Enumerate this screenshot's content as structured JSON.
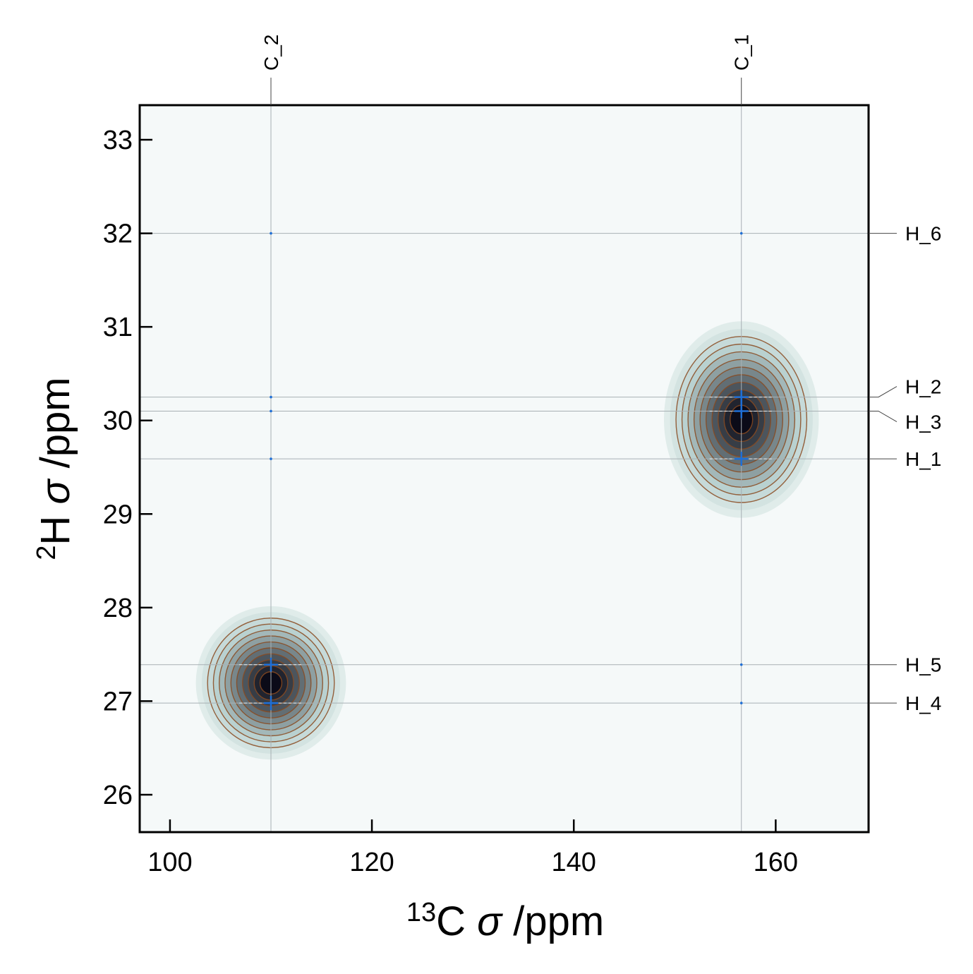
{
  "chart_data": {
    "type": "contour",
    "xlabel": {
      "sup": "13",
      "nuc": "C",
      "rest": " /ppm"
    },
    "ylabel": {
      "sup": "2",
      "nuc": "H",
      "rest": " /ppm"
    },
    "xlim": [
      97,
      169.2
    ],
    "ylim": [
      25.6,
      33.37
    ],
    "x_axis_inverted": false,
    "xticks": [
      100,
      120,
      140,
      160
    ],
    "yticks": [
      26,
      27,
      28,
      29,
      30,
      31,
      32,
      33
    ],
    "grid": false,
    "carbon_labels": [
      {
        "name": "C_2",
        "value": 110.0
      },
      {
        "name": "C_1",
        "value": 156.6
      }
    ],
    "hydrogen_labels": [
      {
        "name": "H_6",
        "value": 32.0
      },
      {
        "name": "H_2",
        "value": 30.25
      },
      {
        "name": "H_3",
        "value": 30.1
      },
      {
        "name": "H_1",
        "value": 29.59
      },
      {
        "name": "H_5",
        "value": 27.39
      },
      {
        "name": "H_4",
        "value": 26.98
      }
    ],
    "peaks": [
      {
        "carbon": "C_1",
        "hydrogen": "H_2",
        "x": 156.6,
        "y": 30.25
      },
      {
        "carbon": "C_1",
        "hydrogen": "H_3",
        "x": 156.6,
        "y": 30.1
      },
      {
        "carbon": "C_1",
        "hydrogen": "H_1",
        "x": 156.6,
        "y": 29.59
      },
      {
        "carbon": "C_2",
        "hydrogen": "H_5",
        "x": 110.0,
        "y": 27.39
      },
      {
        "carbon": "C_2",
        "hydrogen": "H_4",
        "x": 110.0,
        "y": 26.98
      }
    ],
    "contour_regions": [
      {
        "cx": 156.6,
        "cy": 30.07,
        "x_halfwidth": 6.5,
        "y_top": 30.9,
        "y_bottom": 29.12
      },
      {
        "cx": 110.0,
        "cy": 27.2,
        "x_halfwidth": 6.3,
        "y_top": 27.89,
        "y_bottom": 26.5
      }
    ],
    "colors": {
      "background": "#f5f9f9",
      "contour_fill_outer": "#e0ecea",
      "contour_fill_inner": "#0b0b18",
      "contour_line": "#8a4a20",
      "peak_marker": "#1f6fd6",
      "guide_line": "#a8b0b4"
    }
  }
}
